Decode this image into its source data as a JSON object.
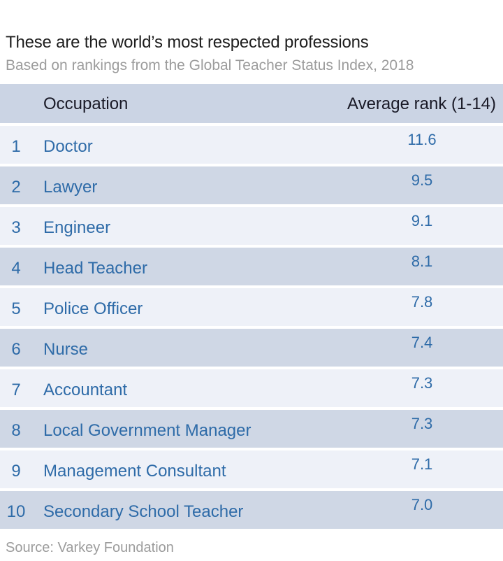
{
  "header": {
    "title": "These are the world’s most respected professions",
    "subtitle": "Based on rankings from the Global Teacher Status Index, 2018"
  },
  "table": {
    "columns": {
      "occupation": "Occupation",
      "rank": "Average rank (1-14)"
    },
    "rows": [
      {
        "position": "1",
        "occupation": "Doctor",
        "value": "11.6"
      },
      {
        "position": "2",
        "occupation": "Lawyer",
        "value": "9.5"
      },
      {
        "position": "3",
        "occupation": "Engineer",
        "value": "9.1"
      },
      {
        "position": "4",
        "occupation": "Head Teacher",
        "value": "8.1"
      },
      {
        "position": "5",
        "occupation": "Police Officer",
        "value": "7.8"
      },
      {
        "position": "6",
        "occupation": "Nurse",
        "value": "7.4"
      },
      {
        "position": "7",
        "occupation": "Accountant",
        "value": "7.3"
      },
      {
        "position": "8",
        "occupation": "Local Government Manager",
        "value": "7.3"
      },
      {
        "position": "9",
        "occupation": "Management Consultant",
        "value": "7.1"
      },
      {
        "position": "10",
        "occupation": "Secondary School Teacher",
        "value": "7.0"
      }
    ]
  },
  "footer": {
    "source": "Source: Varkey Foundation"
  },
  "colors": {
    "accent_text_blue": "#2e6ba8",
    "header_band": "#cbd4e4",
    "row_light": "#eef1f8",
    "row_dark": "#cfd7e5",
    "title_text": "#1e1e1e",
    "muted_text": "#9c9c9c",
    "header_text": "#191926"
  },
  "chart_data": {
    "type": "table",
    "title": "These are the world’s most respected professions",
    "subtitle": "Based on rankings from the Global Teacher Status Index, 2018",
    "columns": [
      "Occupation",
      "Average rank (1-14)"
    ],
    "categories": [
      "Doctor",
      "Lawyer",
      "Engineer",
      "Head Teacher",
      "Police Officer",
      "Nurse",
      "Accountant",
      "Local Government Manager",
      "Management Consultant",
      "Secondary School Teacher"
    ],
    "values": [
      11.6,
      9.5,
      9.1,
      8.1,
      7.8,
      7.4,
      7.3,
      7.3,
      7.1,
      7.0
    ],
    "rank_scale": [
      1,
      14
    ],
    "source": "Source: Varkey Foundation",
    "legend_position": "none",
    "grid": false
  }
}
